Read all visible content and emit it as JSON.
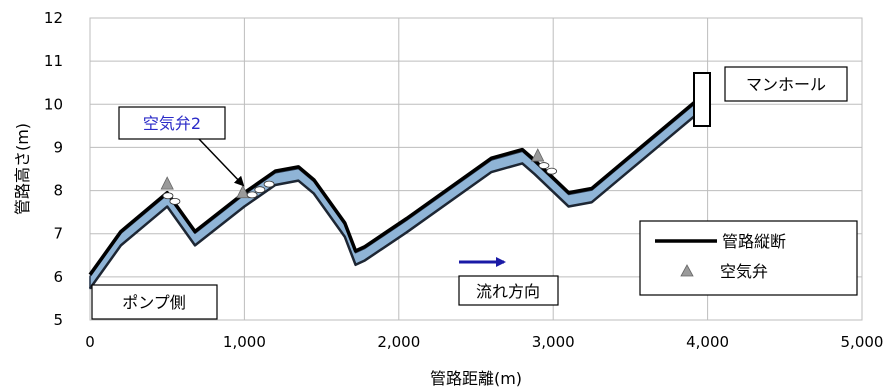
{
  "chart_data": {
    "type": "line",
    "xlabel": "管路距離(m)",
    "ylabel": "管路高さ(m)",
    "xlim": [
      0,
      5000
    ],
    "ylim": [
      5,
      12
    ],
    "x_ticks": [
      "0",
      "1,000",
      "2,000",
      "3,000",
      "4,000",
      "5,000"
    ],
    "y_ticks": [
      "5",
      "6",
      "7",
      "8",
      "9",
      "10",
      "11",
      "12"
    ],
    "grid": true,
    "series": [
      {
        "name": "管路縦断",
        "color": "#000000",
        "x": [
          0,
          200,
          500,
          680,
          1000,
          1200,
          1350,
          1450,
          1650,
          1720,
          1780,
          2050,
          2600,
          2800,
          2880,
          3100,
          3250,
          3950
        ],
        "y": [
          6.05,
          7.05,
          7.95,
          7.05,
          7.95,
          8.45,
          8.55,
          8.25,
          7.25,
          6.6,
          6.7,
          7.35,
          8.75,
          8.95,
          8.7,
          7.95,
          8.05,
          10.15
        ]
      },
      {
        "name": "空気弁",
        "type": "scatter",
        "marker": "triangle",
        "color": "#9a9a9a",
        "x": [
          500,
          990,
          2900
        ],
        "y": [
          8.15,
          7.95,
          8.8
        ]
      }
    ],
    "annotations": {
      "air_valve_label": "空気弁2",
      "manhole_label": "マンホール",
      "pump_label": "ポンプ側",
      "flow_label": "流れ方向"
    },
    "legend": {
      "position": "bottom-right",
      "entries": [
        "管路縦断",
        "空気弁"
      ]
    }
  }
}
